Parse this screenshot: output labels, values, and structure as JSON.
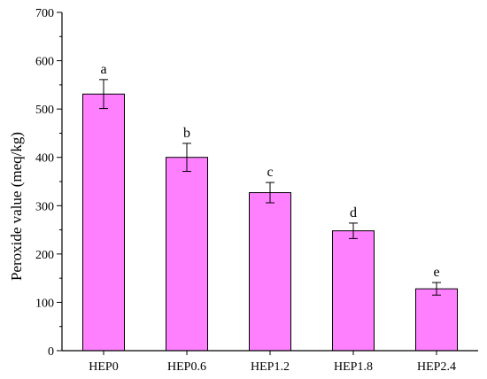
{
  "chart_data": {
    "type": "bar",
    "xlabel": "",
    "ylabel": "Peroxide value (meq/kg)",
    "ylim": [
      0,
      700
    ],
    "yticks": [
      0,
      100,
      200,
      300,
      400,
      500,
      600,
      700
    ],
    "categories": [
      "HEP0",
      "HEP0.6",
      "HEP1.2",
      "HEP1.8",
      "HEP2.4"
    ],
    "values": [
      531,
      400,
      327,
      248,
      128
    ],
    "errors": [
      30,
      29,
      21,
      16,
      13
    ],
    "annotations": [
      "a",
      "b",
      "c",
      "d",
      "e"
    ],
    "grid": false,
    "legend": "none",
    "bar_color": "#FF80FF",
    "edge_color": "#000000"
  }
}
